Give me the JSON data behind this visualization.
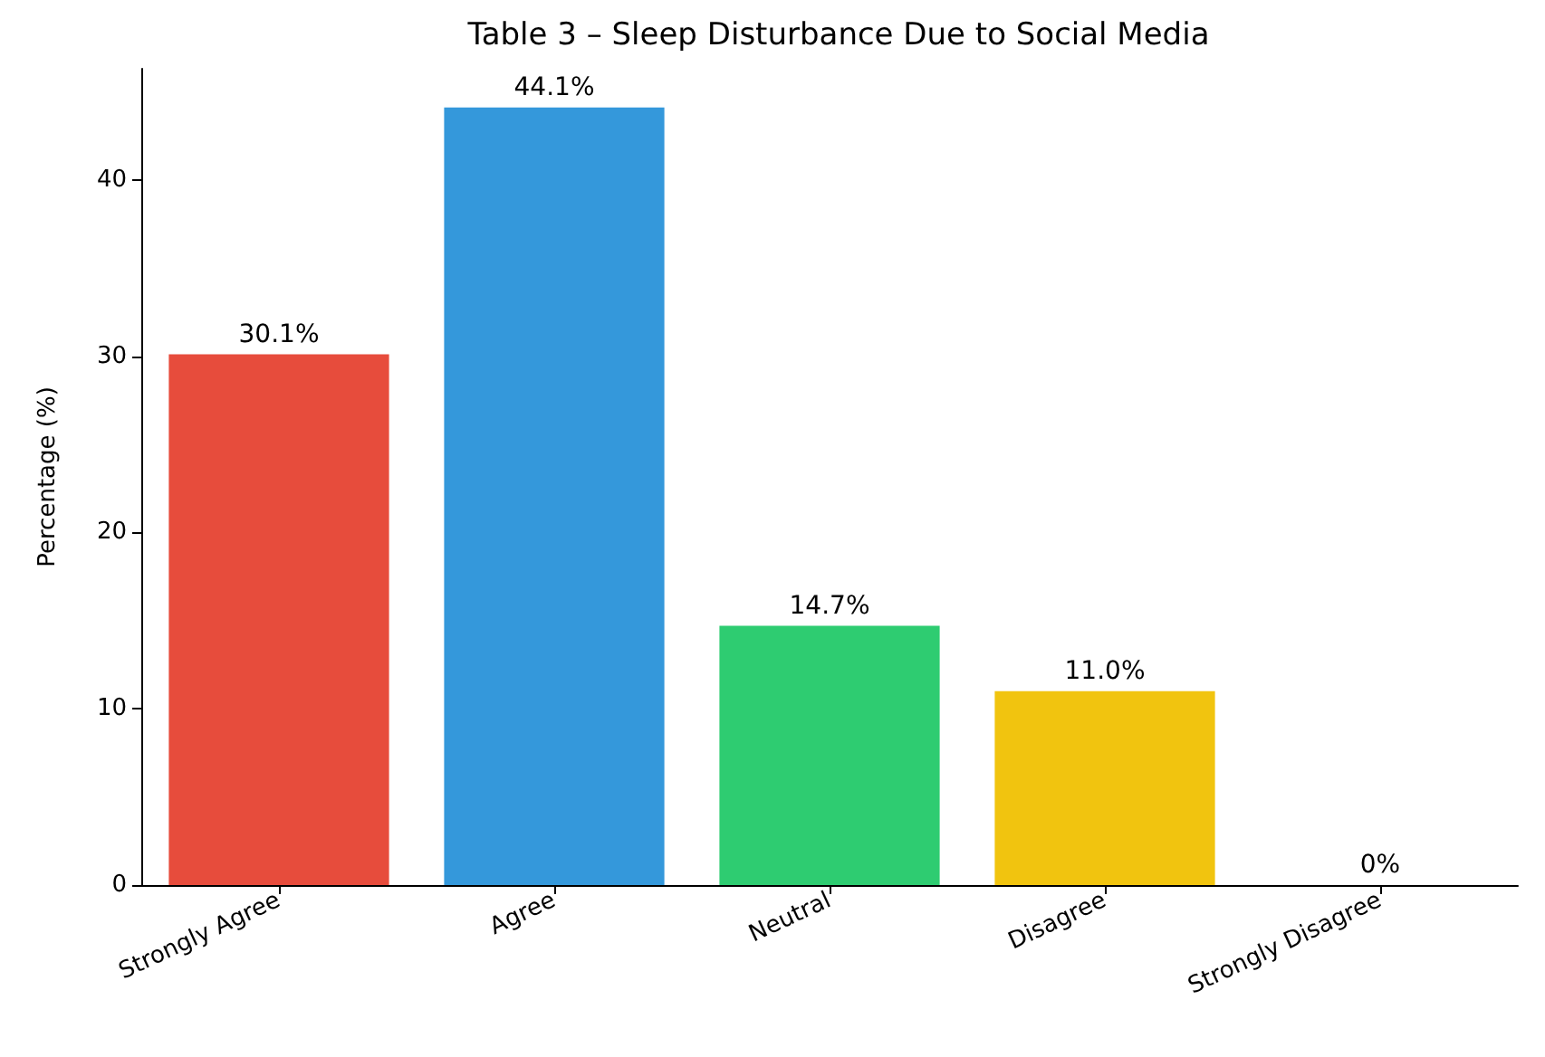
{
  "chart_data": {
    "type": "bar",
    "title": "Table 3 – Sleep Disturbance Due to Social Media",
    "ylabel": "Percentage (%)",
    "categories": [
      "Strongly Agree",
      "Agree",
      "Neutral",
      "Disagree",
      "Strongly Disagree"
    ],
    "values": [
      30.1,
      44.1,
      14.7,
      11.0,
      0
    ],
    "colors": [
      "#e74c3c",
      "#3498db",
      "#2ecc71",
      "#f1c40f",
      "#9b59b6"
    ],
    "value_labels": [
      "30.1%",
      "44.1%",
      "14.7%",
      "11.0%",
      "0%"
    ],
    "ylim": [
      0,
      46.3
    ],
    "yticks": [
      0,
      10,
      20,
      30,
      40
    ],
    "grid": false
  }
}
